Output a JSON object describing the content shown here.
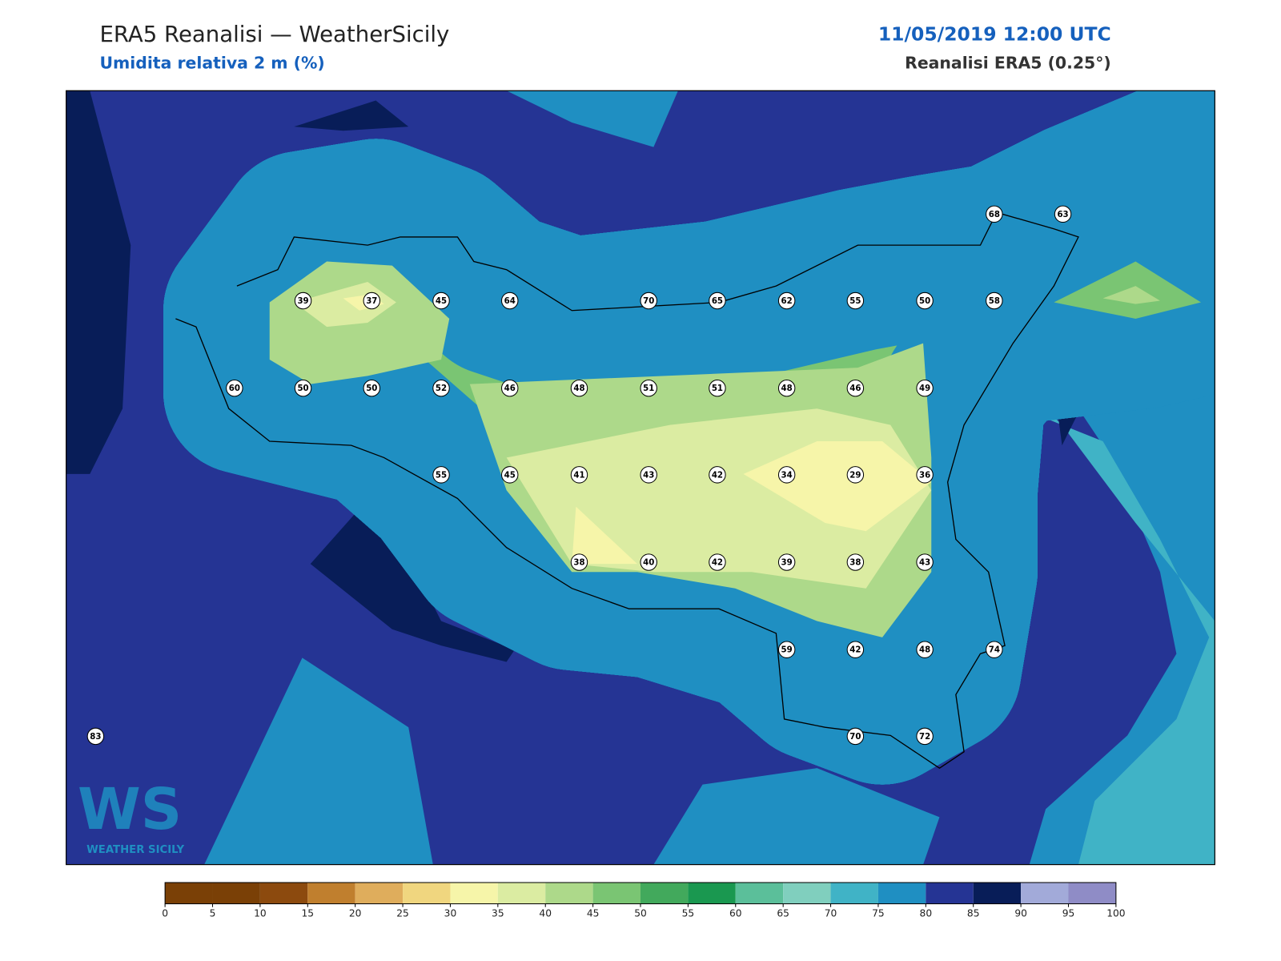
{
  "header": {
    "title": "ERA5 Reanalisi — WeatherSicily",
    "subtitle": "Umidita relativa 2 m (%)",
    "datetime": "11/05/2019 12:00 UTC",
    "source": "Reanalisi ERA5 (0.25°)"
  },
  "stations": [
    68,
    63,
    39,
    37,
    45,
    64,
    70,
    65,
    62,
    55,
    50,
    58,
    60,
    50,
    50,
    52,
    46,
    48,
    51,
    51,
    48,
    46,
    49,
    55,
    45,
    41,
    43,
    42,
    34,
    29,
    36,
    38,
    40,
    42,
    39,
    38,
    43,
    59,
    42,
    48,
    74,
    83,
    70,
    72
  ],
  "colorbar": {
    "ticks": [
      0,
      5,
      10,
      15,
      20,
      25,
      30,
      35,
      40,
      45,
      50,
      55,
      60,
      65,
      70,
      75,
      80,
      85,
      90,
      95,
      100
    ],
    "colors": [
      "#7a4006",
      "#7a4006",
      "#8c4a0e",
      "#c07f2e",
      "#dfad5c",
      "#f0d67f",
      "#f6f5a9",
      "#dbeca2",
      "#add98a",
      "#7ac573",
      "#42a95c",
      "#1a9850",
      "#5bbf9a",
      "#80cfbe",
      "#40b3c6",
      "#1f8fc2",
      "#253494",
      "#081d58",
      "#a2aad9",
      "#8f8cc6"
    ]
  },
  "logo": {
    "letters": "WS",
    "name": "WEATHER SICILY"
  }
}
